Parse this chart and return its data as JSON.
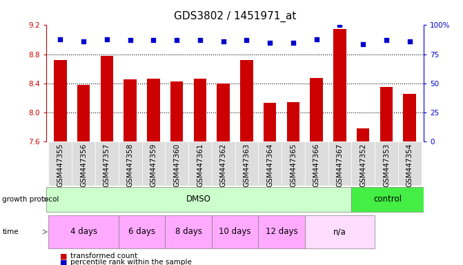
{
  "title": "GDS3802 / 1451971_at",
  "samples": [
    "GSM447355",
    "GSM447356",
    "GSM447357",
    "GSM447358",
    "GSM447359",
    "GSM447360",
    "GSM447361",
    "GSM447362",
    "GSM447363",
    "GSM447364",
    "GSM447365",
    "GSM447366",
    "GSM447367",
    "GSM447352",
    "GSM447353",
    "GSM447354"
  ],
  "bar_values": [
    8.72,
    8.38,
    8.78,
    8.46,
    8.47,
    8.43,
    8.47,
    8.4,
    8.72,
    8.13,
    8.14,
    8.48,
    9.15,
    7.78,
    8.35,
    8.26
  ],
  "percentile_values": [
    88,
    86,
    88,
    87,
    87,
    87,
    87,
    86,
    87,
    85,
    85,
    88,
    100,
    84,
    87,
    86
  ],
  "bar_color": "#cc0000",
  "percentile_color": "#0000cc",
  "ylim_left": [
    7.6,
    9.2
  ],
  "ylim_right": [
    0,
    100
  ],
  "yticks_left": [
    7.6,
    8.0,
    8.4,
    8.8,
    9.2
  ],
  "yticks_right": [
    0,
    25,
    50,
    75,
    100
  ],
  "ytick_labels_right": [
    "0",
    "25",
    "50",
    "75",
    "100%"
  ],
  "grid_values": [
    8.0,
    8.4,
    8.8
  ],
  "growth_protocol_label": "growth protocol",
  "growth_protocol_dmso": "DMSO",
  "growth_protocol_control": "control",
  "time_label": "time",
  "time_periods": [
    "4 days",
    "6 days",
    "8 days",
    "10 days",
    "12 days",
    "n/a"
  ],
  "time_period_spans": [
    3,
    2,
    2,
    2,
    2,
    3
  ],
  "dmso_color": "#ccffcc",
  "control_color": "#44ee44",
  "time_color": "#ffaaff",
  "time_na_color": "#ffddff",
  "sample_bg_color": "#dddddd",
  "legend_bar": "transformed count",
  "legend_dot": "percentile rank within the sample",
  "title_fontsize": 11,
  "tick_fontsize": 7.5,
  "annot_fontsize": 8.5,
  "bar_width": 0.55
}
